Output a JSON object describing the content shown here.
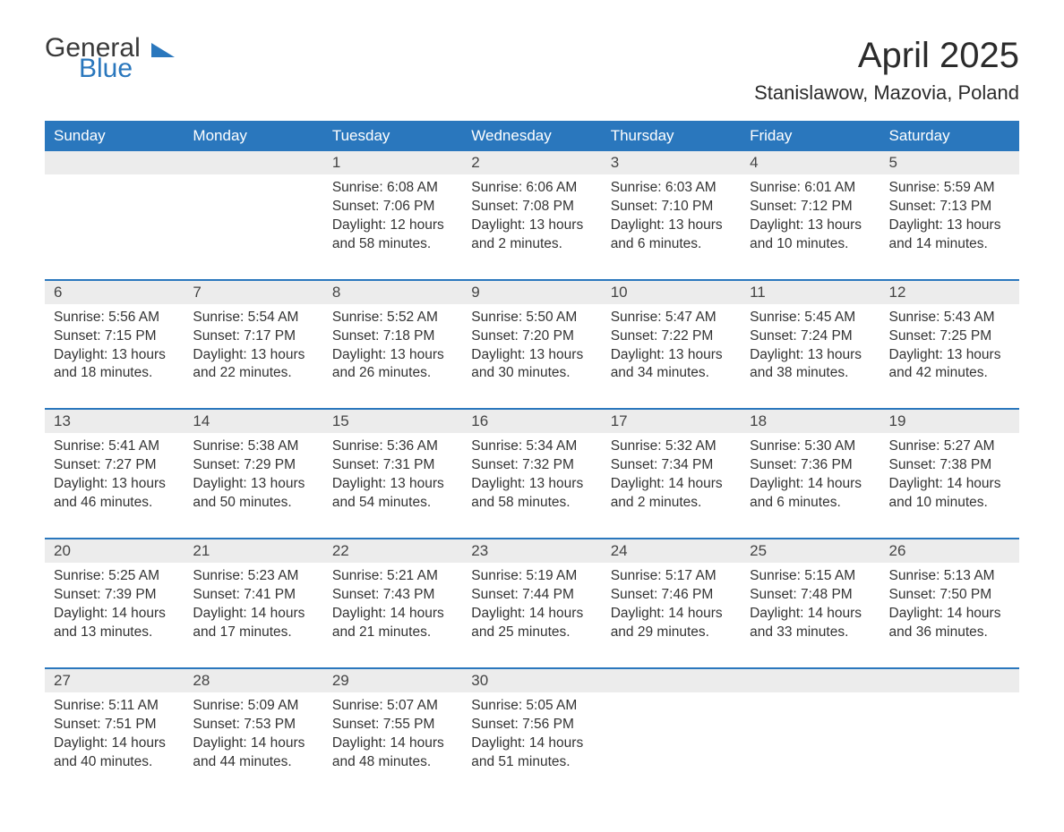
{
  "logo": {
    "text_general": "General",
    "text_blue": "Blue",
    "accent_color": "#2a77bd"
  },
  "title": "April 2025",
  "location": "Stanislawow, Mazovia, Poland",
  "colors": {
    "header_bg": "#2a77bd",
    "header_text": "#ffffff",
    "daynum_bg": "#ececec",
    "week_sep": "#2a77bd",
    "body_text": "#333333",
    "page_bg": "#ffffff"
  },
  "day_headers": [
    "Sunday",
    "Monday",
    "Tuesday",
    "Wednesday",
    "Thursday",
    "Friday",
    "Saturday"
  ],
  "weeks": [
    [
      null,
      null,
      {
        "n": "1",
        "sunrise": "Sunrise: 6:08 AM",
        "sunset": "Sunset: 7:06 PM",
        "dl1": "Daylight: 12 hours",
        "dl2": "and 58 minutes."
      },
      {
        "n": "2",
        "sunrise": "Sunrise: 6:06 AM",
        "sunset": "Sunset: 7:08 PM",
        "dl1": "Daylight: 13 hours",
        "dl2": "and 2 minutes."
      },
      {
        "n": "3",
        "sunrise": "Sunrise: 6:03 AM",
        "sunset": "Sunset: 7:10 PM",
        "dl1": "Daylight: 13 hours",
        "dl2": "and 6 minutes."
      },
      {
        "n": "4",
        "sunrise": "Sunrise: 6:01 AM",
        "sunset": "Sunset: 7:12 PM",
        "dl1": "Daylight: 13 hours",
        "dl2": "and 10 minutes."
      },
      {
        "n": "5",
        "sunrise": "Sunrise: 5:59 AM",
        "sunset": "Sunset: 7:13 PM",
        "dl1": "Daylight: 13 hours",
        "dl2": "and 14 minutes."
      }
    ],
    [
      {
        "n": "6",
        "sunrise": "Sunrise: 5:56 AM",
        "sunset": "Sunset: 7:15 PM",
        "dl1": "Daylight: 13 hours",
        "dl2": "and 18 minutes."
      },
      {
        "n": "7",
        "sunrise": "Sunrise: 5:54 AM",
        "sunset": "Sunset: 7:17 PM",
        "dl1": "Daylight: 13 hours",
        "dl2": "and 22 minutes."
      },
      {
        "n": "8",
        "sunrise": "Sunrise: 5:52 AM",
        "sunset": "Sunset: 7:18 PM",
        "dl1": "Daylight: 13 hours",
        "dl2": "and 26 minutes."
      },
      {
        "n": "9",
        "sunrise": "Sunrise: 5:50 AM",
        "sunset": "Sunset: 7:20 PM",
        "dl1": "Daylight: 13 hours",
        "dl2": "and 30 minutes."
      },
      {
        "n": "10",
        "sunrise": "Sunrise: 5:47 AM",
        "sunset": "Sunset: 7:22 PM",
        "dl1": "Daylight: 13 hours",
        "dl2": "and 34 minutes."
      },
      {
        "n": "11",
        "sunrise": "Sunrise: 5:45 AM",
        "sunset": "Sunset: 7:24 PM",
        "dl1": "Daylight: 13 hours",
        "dl2": "and 38 minutes."
      },
      {
        "n": "12",
        "sunrise": "Sunrise: 5:43 AM",
        "sunset": "Sunset: 7:25 PM",
        "dl1": "Daylight: 13 hours",
        "dl2": "and 42 minutes."
      }
    ],
    [
      {
        "n": "13",
        "sunrise": "Sunrise: 5:41 AM",
        "sunset": "Sunset: 7:27 PM",
        "dl1": "Daylight: 13 hours",
        "dl2": "and 46 minutes."
      },
      {
        "n": "14",
        "sunrise": "Sunrise: 5:38 AM",
        "sunset": "Sunset: 7:29 PM",
        "dl1": "Daylight: 13 hours",
        "dl2": "and 50 minutes."
      },
      {
        "n": "15",
        "sunrise": "Sunrise: 5:36 AM",
        "sunset": "Sunset: 7:31 PM",
        "dl1": "Daylight: 13 hours",
        "dl2": "and 54 minutes."
      },
      {
        "n": "16",
        "sunrise": "Sunrise: 5:34 AM",
        "sunset": "Sunset: 7:32 PM",
        "dl1": "Daylight: 13 hours",
        "dl2": "and 58 minutes."
      },
      {
        "n": "17",
        "sunrise": "Sunrise: 5:32 AM",
        "sunset": "Sunset: 7:34 PM",
        "dl1": "Daylight: 14 hours",
        "dl2": "and 2 minutes."
      },
      {
        "n": "18",
        "sunrise": "Sunrise: 5:30 AM",
        "sunset": "Sunset: 7:36 PM",
        "dl1": "Daylight: 14 hours",
        "dl2": "and 6 minutes."
      },
      {
        "n": "19",
        "sunrise": "Sunrise: 5:27 AM",
        "sunset": "Sunset: 7:38 PM",
        "dl1": "Daylight: 14 hours",
        "dl2": "and 10 minutes."
      }
    ],
    [
      {
        "n": "20",
        "sunrise": "Sunrise: 5:25 AM",
        "sunset": "Sunset: 7:39 PM",
        "dl1": "Daylight: 14 hours",
        "dl2": "and 13 minutes."
      },
      {
        "n": "21",
        "sunrise": "Sunrise: 5:23 AM",
        "sunset": "Sunset: 7:41 PM",
        "dl1": "Daylight: 14 hours",
        "dl2": "and 17 minutes."
      },
      {
        "n": "22",
        "sunrise": "Sunrise: 5:21 AM",
        "sunset": "Sunset: 7:43 PM",
        "dl1": "Daylight: 14 hours",
        "dl2": "and 21 minutes."
      },
      {
        "n": "23",
        "sunrise": "Sunrise: 5:19 AM",
        "sunset": "Sunset: 7:44 PM",
        "dl1": "Daylight: 14 hours",
        "dl2": "and 25 minutes."
      },
      {
        "n": "24",
        "sunrise": "Sunrise: 5:17 AM",
        "sunset": "Sunset: 7:46 PM",
        "dl1": "Daylight: 14 hours",
        "dl2": "and 29 minutes."
      },
      {
        "n": "25",
        "sunrise": "Sunrise: 5:15 AM",
        "sunset": "Sunset: 7:48 PM",
        "dl1": "Daylight: 14 hours",
        "dl2": "and 33 minutes."
      },
      {
        "n": "26",
        "sunrise": "Sunrise: 5:13 AM",
        "sunset": "Sunset: 7:50 PM",
        "dl1": "Daylight: 14 hours",
        "dl2": "and 36 minutes."
      }
    ],
    [
      {
        "n": "27",
        "sunrise": "Sunrise: 5:11 AM",
        "sunset": "Sunset: 7:51 PM",
        "dl1": "Daylight: 14 hours",
        "dl2": "and 40 minutes."
      },
      {
        "n": "28",
        "sunrise": "Sunrise: 5:09 AM",
        "sunset": "Sunset: 7:53 PM",
        "dl1": "Daylight: 14 hours",
        "dl2": "and 44 minutes."
      },
      {
        "n": "29",
        "sunrise": "Sunrise: 5:07 AM",
        "sunset": "Sunset: 7:55 PM",
        "dl1": "Daylight: 14 hours",
        "dl2": "and 48 minutes."
      },
      {
        "n": "30",
        "sunrise": "Sunrise: 5:05 AM",
        "sunset": "Sunset: 7:56 PM",
        "dl1": "Daylight: 14 hours",
        "dl2": "and 51 minutes."
      },
      null,
      null,
      null
    ]
  ]
}
